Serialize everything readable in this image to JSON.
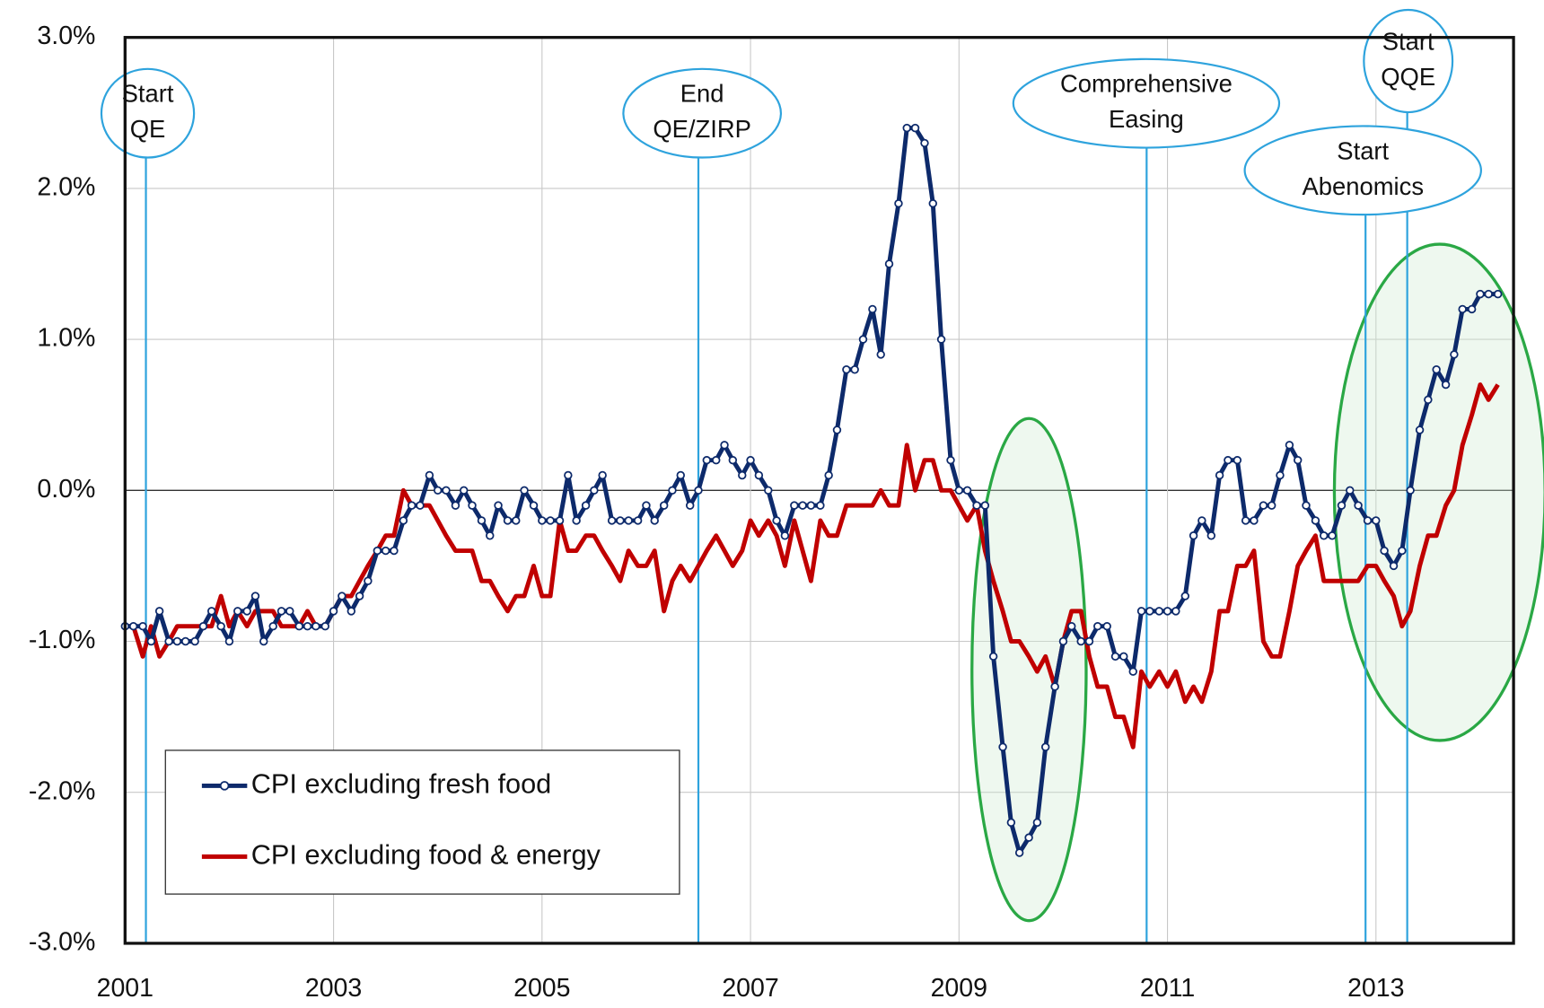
{
  "chart_data": {
    "type": "line",
    "xlim": [
      2001,
      2014.32
    ],
    "xticks": [
      2001,
      2003,
      2005,
      2007,
      2009,
      2011,
      2013
    ],
    "ylim": [
      -3,
      3
    ],
    "yticks": [
      {
        "value": -3,
        "label": "-3.0%"
      },
      {
        "value": -2,
        "label": "-2.0%"
      },
      {
        "value": -1,
        "label": "-1.0%"
      },
      {
        "value": 0,
        "label": "0.0%"
      },
      {
        "value": 1,
        "label": "1.0%"
      },
      {
        "value": 2,
        "label": "2.0%"
      },
      {
        "value": 3,
        "label": "3.0%"
      }
    ],
    "grid": true,
    "legend": "lower left",
    "x": [
      2001,
      2001.08,
      2001.17,
      2001.25,
      2001.33,
      2001.42,
      2001.5,
      2001.58,
      2001.67,
      2001.75,
      2001.83,
      2001.92,
      2002,
      2002.08,
      2002.17,
      2002.25,
      2002.33,
      2002.42,
      2002.5,
      2002.58,
      2002.67,
      2002.75,
      2002.83,
      2002.92,
      2003,
      2003.08,
      2003.17,
      2003.25,
      2003.33,
      2003.42,
      2003.5,
      2003.58,
      2003.67,
      2003.75,
      2003.83,
      2003.92,
      2004,
      2004.08,
      2004.17,
      2004.25,
      2004.33,
      2004.42,
      2004.5,
      2004.58,
      2004.67,
      2004.75,
      2004.83,
      2004.92,
      2005,
      2005.08,
      2005.17,
      2005.25,
      2005.33,
      2005.42,
      2005.5,
      2005.58,
      2005.67,
      2005.75,
      2005.83,
      2005.92,
      2006,
      2006.08,
      2006.17,
      2006.25,
      2006.33,
      2006.42,
      2006.5,
      2006.58,
      2006.67,
      2006.75,
      2006.83,
      2006.92,
      2007,
      2007.08,
      2007.17,
      2007.25,
      2007.33,
      2007.42,
      2007.5,
      2007.58,
      2007.67,
      2007.75,
      2007.83,
      2007.92,
      2008,
      2008.08,
      2008.17,
      2008.25,
      2008.33,
      2008.42,
      2008.5,
      2008.58,
      2008.67,
      2008.75,
      2008.83,
      2008.92,
      2009,
      2009.08,
      2009.17,
      2009.25,
      2009.33,
      2009.42,
      2009.5,
      2009.58,
      2009.67,
      2009.75,
      2009.83,
      2009.92,
      2010,
      2010.08,
      2010.17,
      2010.25,
      2010.33,
      2010.42,
      2010.5,
      2010.58,
      2010.67,
      2010.75,
      2010.83,
      2010.92,
      2011,
      2011.08,
      2011.17,
      2011.25,
      2011.33,
      2011.42,
      2011.5,
      2011.58,
      2011.67,
      2011.75,
      2011.83,
      2011.92,
      2012,
      2012.08,
      2012.17,
      2012.25,
      2012.33,
      2012.42,
      2012.5,
      2012.58,
      2012.67,
      2012.75,
      2012.83,
      2012.92,
      2013,
      2013.08,
      2013.17,
      2013.25,
      2013.33,
      2013.42,
      2013.5,
      2013.58,
      2013.67,
      2013.75,
      2013.83,
      2013.92,
      2014,
      2014.08,
      2014.17
    ],
    "series": [
      {
        "name": "CPI excluding fresh food",
        "color": "#0d2a6b",
        "marker": "o",
        "values": [
          -0.9,
          -0.9,
          -0.9,
          -1.0,
          -0.8,
          -1.0,
          -1.0,
          -1.0,
          -1.0,
          -0.9,
          -0.8,
          -0.9,
          -1.0,
          -0.8,
          -0.8,
          -0.7,
          -1.0,
          -0.9,
          -0.8,
          -0.8,
          -0.9,
          -0.9,
          -0.9,
          -0.9,
          -0.8,
          -0.7,
          -0.8,
          -0.7,
          -0.6,
          -0.4,
          -0.4,
          -0.4,
          -0.2,
          -0.1,
          -0.1,
          0.1,
          0.0,
          0.0,
          -0.1,
          0.0,
          -0.1,
          -0.2,
          -0.3,
          -0.1,
          -0.2,
          -0.2,
          0.0,
          -0.1,
          -0.2,
          -0.2,
          -0.2,
          0.1,
          -0.2,
          -0.1,
          0.0,
          0.1,
          -0.2,
          -0.2,
          -0.2,
          -0.2,
          -0.1,
          -0.2,
          -0.1,
          0.0,
          0.1,
          -0.1,
          0.0,
          0.2,
          0.2,
          0.3,
          0.2,
          0.1,
          0.2,
          0.1,
          0.0,
          -0.2,
          -0.3,
          -0.1,
          -0.1,
          -0.1,
          -0.1,
          0.1,
          0.4,
          0.8,
          0.8,
          1.0,
          1.2,
          0.9,
          1.5,
          1.9,
          2.4,
          2.4,
          2.3,
          1.9,
          1.0,
          0.2,
          0.0,
          0.0,
          -0.1,
          -0.1,
          -1.1,
          -1.7,
          -2.2,
          -2.4,
          -2.3,
          -2.2,
          -1.7,
          -1.3,
          -1.0,
          -0.9,
          -1.0,
          -1.0,
          -0.9,
          -0.9,
          -1.1,
          -1.1,
          -1.2,
          -0.8,
          -0.8,
          -0.8,
          -0.8,
          -0.8,
          -0.7,
          -0.3,
          -0.2,
          -0.3,
          0.1,
          0.2,
          0.2,
          -0.2,
          -0.2,
          -0.1,
          -0.1,
          0.1,
          0.3,
          0.2,
          -0.1,
          -0.2,
          -0.3,
          -0.3,
          -0.1,
          0.0,
          -0.1,
          -0.2,
          -0.2,
          -0.4,
          -0.5,
          -0.4,
          0.0,
          0.4,
          0.6,
          0.8,
          0.7,
          0.9,
          1.2,
          1.2,
          1.3,
          1.3,
          1.3
        ]
      },
      {
        "name": "CPI excluding food & energy",
        "color": "#c00000",
        "values": [
          -0.9,
          -0.9,
          -1.1,
          -0.9,
          -1.1,
          -1.0,
          -0.9,
          -0.9,
          -0.9,
          -0.9,
          -0.9,
          -0.7,
          -0.9,
          -0.8,
          -0.9,
          -0.8,
          -0.8,
          -0.8,
          -0.9,
          -0.9,
          -0.9,
          -0.8,
          -0.9,
          -0.9,
          -0.8,
          -0.7,
          -0.7,
          -0.6,
          -0.5,
          -0.4,
          -0.3,
          -0.3,
          0.0,
          -0.1,
          -0.1,
          -0.1,
          -0.2,
          -0.3,
          -0.4,
          -0.4,
          -0.4,
          -0.6,
          -0.6,
          -0.7,
          -0.8,
          -0.7,
          -0.7,
          -0.5,
          -0.7,
          -0.7,
          -0.2,
          -0.4,
          -0.4,
          -0.3,
          -0.3,
          -0.4,
          -0.5,
          -0.6,
          -0.4,
          -0.5,
          -0.5,
          -0.4,
          -0.8,
          -0.6,
          -0.5,
          -0.6,
          -0.5,
          -0.4,
          -0.3,
          -0.4,
          -0.5,
          -0.4,
          -0.2,
          -0.3,
          -0.2,
          -0.3,
          -0.5,
          -0.2,
          -0.4,
          -0.6,
          -0.2,
          -0.3,
          -0.3,
          -0.1,
          -0.1,
          -0.1,
          -0.1,
          0.0,
          -0.1,
          -0.1,
          0.3,
          0.0,
          0.2,
          0.2,
          0.0,
          0.0,
          -0.1,
          -0.2,
          -0.1,
          -0.4,
          -0.6,
          -0.8,
          -1.0,
          -1.0,
          -1.1,
          -1.2,
          -1.1,
          -1.3,
          -1.0,
          -0.8,
          -0.8,
          -1.1,
          -1.3,
          -1.3,
          -1.5,
          -1.5,
          -1.7,
          -1.2,
          -1.3,
          -1.2,
          -1.3,
          -1.2,
          -1.4,
          -1.3,
          -1.4,
          -1.2,
          -0.8,
          -0.8,
          -0.5,
          -0.5,
          -0.4,
          -1.0,
          -1.1,
          -1.1,
          -0.8,
          -0.5,
          -0.4,
          -0.3,
          -0.6,
          -0.6,
          -0.6,
          -0.6,
          -0.6,
          -0.5,
          -0.5,
          -0.6,
          -0.7,
          -0.9,
          -0.8,
          -0.5,
          -0.3,
          -0.3,
          -0.1,
          0.0,
          0.3,
          0.5,
          0.7,
          0.6,
          0.7
        ]
      }
    ],
    "annotations": [
      {
        "lines": [
          "Start",
          "QE"
        ],
        "x": 2001.2
      },
      {
        "lines": [
          "End",
          "QE/ZIRP"
        ],
        "x": 2006.5
      },
      {
        "lines": [
          "Comprehensive",
          "Easing"
        ],
        "x": 2010.8
      },
      {
        "lines": [
          "Start",
          "Abenomics"
        ],
        "x": 2012.9
      },
      {
        "lines": [
          "Start",
          "QQE"
        ],
        "x": 2013.3
      }
    ]
  }
}
